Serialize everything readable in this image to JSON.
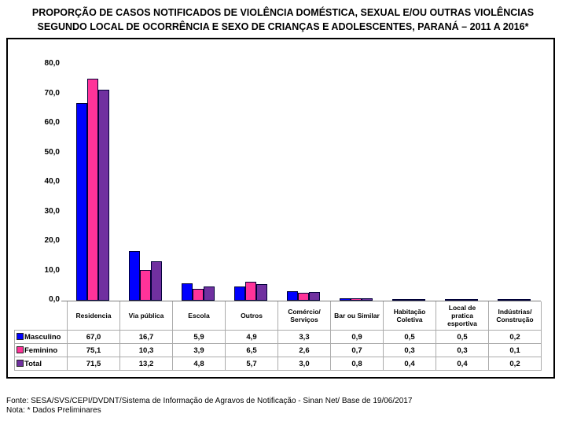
{
  "title": {
    "line1": "PROPORÇÃO DE CASOS NOTIFICADOS DE VIOLÊNCIA DOMÉSTICA, SEXUAL E/OU OUTRAS VIOLÊNCIAS",
    "line2": "SEGUNDO LOCAL DE OCORRÊNCIA E SEXO DE CRIANÇAS E ADOLESCENTES, PARANÁ – 2011 A 2016*"
  },
  "chart_data": {
    "type": "bar",
    "categories": [
      "Residencia",
      "Via pública",
      "Escola",
      "Outros",
      "Comércio/ Serviços",
      "Bar ou Similar",
      "Habitação Coletiva",
      "Local de pratica esportiva",
      "Indústrias/ Construção"
    ],
    "series": [
      {
        "name": "Masculino",
        "color": "#0000FE",
        "values": [
          67.0,
          16.7,
          5.9,
          4.9,
          3.3,
          0.9,
          0.5,
          0.5,
          0.2
        ]
      },
      {
        "name": "Feminino",
        "color": "#FF3399",
        "values": [
          75.1,
          10.3,
          3.9,
          6.5,
          2.6,
          0.7,
          0.3,
          0.3,
          0.1
        ]
      },
      {
        "name": "Total",
        "color": "#7030A0",
        "values": [
          71.5,
          13.2,
          4.8,
          5.7,
          3.0,
          0.8,
          0.4,
          0.4,
          0.2
        ]
      }
    ],
    "ylim": [
      0,
      80
    ],
    "ytick_step": 10,
    "ytick_labels": [
      "0,0",
      "10,0",
      "20,0",
      "30,0",
      "40,0",
      "50,0",
      "60,0",
      "70,0",
      "80,0"
    ],
    "grid": false,
    "legend_position": "table-left",
    "value_format": "comma-decimal"
  },
  "footer": {
    "fonte": "Fonte: SESA/SVS/CEPI/DVDNT/Sistema de Informação de Agravos de Notificação - Sinan Net/ Base de 19/06/2017",
    "nota": "Nota: * Dados Preliminares"
  }
}
